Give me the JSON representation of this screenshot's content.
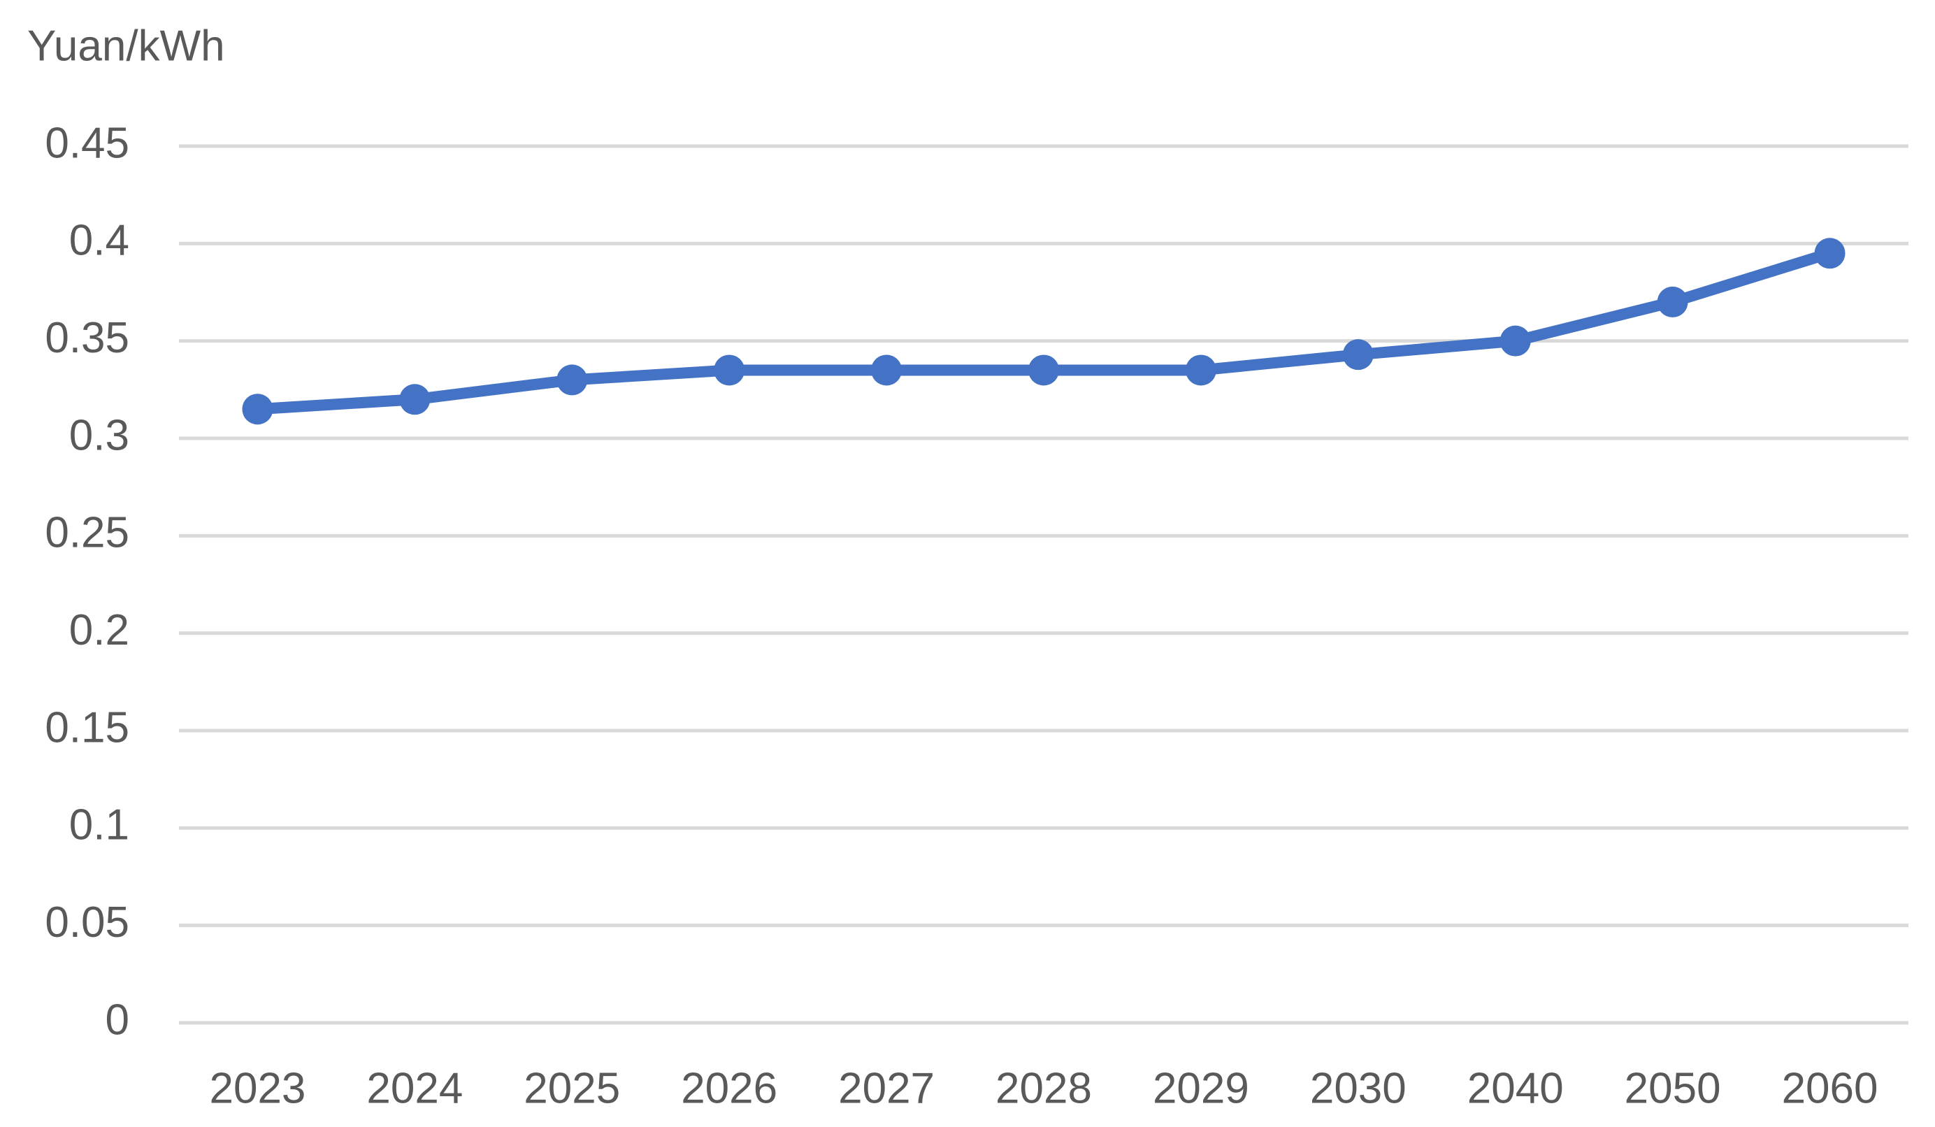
{
  "chart_data": {
    "type": "line",
    "y_label": "Yuan/kWh",
    "categories": [
      "2023",
      "2024",
      "2025",
      "2026",
      "2027",
      "2028",
      "2029",
      "2030",
      "2040",
      "2050",
      "2060"
    ],
    "values": [
      0.315,
      0.32,
      0.33,
      0.335,
      0.335,
      0.335,
      0.335,
      0.343,
      0.35,
      0.37,
      0.395
    ],
    "color": "#4472c4",
    "ylim": [
      0,
      0.45
    ],
    "yticks": [
      0,
      0.05,
      0.1,
      0.15,
      0.2,
      0.25,
      0.3,
      0.35,
      0.4,
      0.45
    ],
    "grid": true
  }
}
